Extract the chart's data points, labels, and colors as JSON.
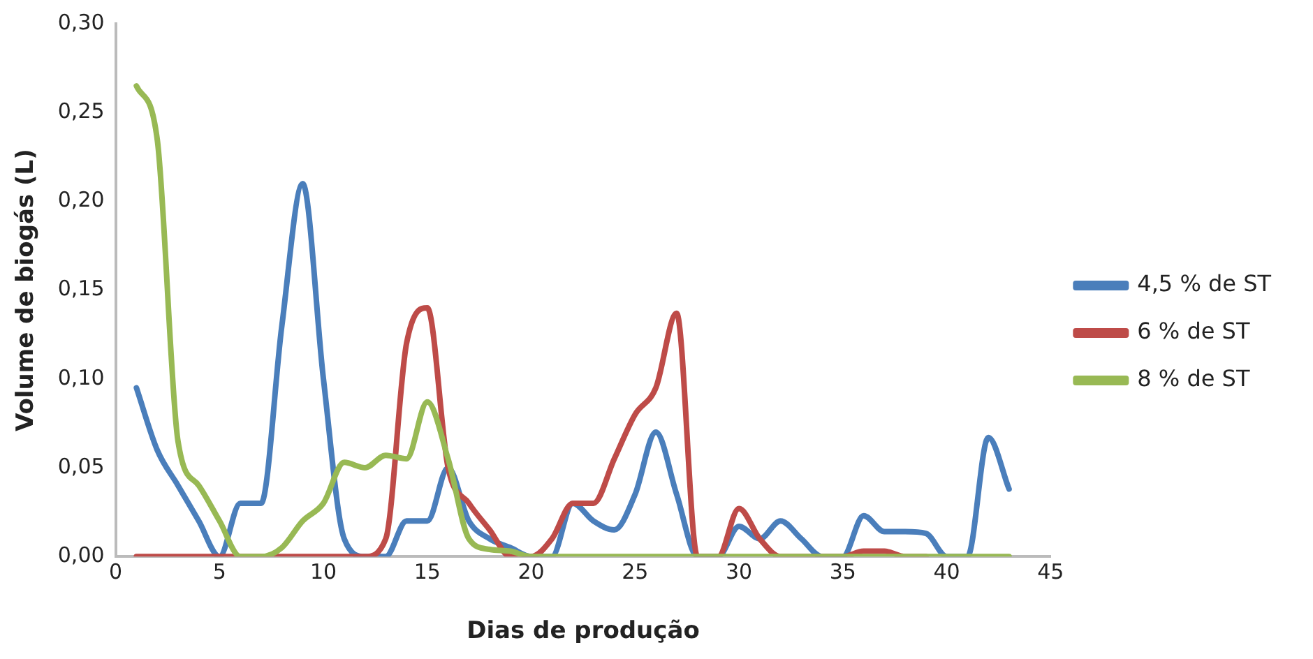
{
  "chart_data": {
    "type": "line",
    "xlabel": "Dias de produção",
    "ylabel": "Volume de biogás (L)",
    "x": [
      1,
      2,
      3,
      4,
      5,
      6,
      7,
      8,
      9,
      10,
      11,
      12,
      13,
      14,
      15,
      16,
      17,
      18,
      19,
      20,
      21,
      22,
      23,
      24,
      25,
      26,
      27,
      28,
      29,
      30,
      31,
      32,
      33,
      34,
      35,
      36,
      37,
      38,
      39,
      40,
      41,
      42,
      43
    ],
    "series": [
      {
        "name": "4,5 % de ST",
        "color": "#4a7ebb",
        "values": [
          0.095,
          0.06,
          0.04,
          0.02,
          0,
          0.03,
          0.03,
          0.13,
          0.21,
          0.1,
          0.01,
          0,
          0,
          0.02,
          0.02,
          0.05,
          0.02,
          0.01,
          0.005,
          0,
          0,
          0.03,
          0.02,
          0.015,
          0.035,
          0.07,
          0.035,
          0,
          0,
          0.017,
          0.01,
          0.02,
          0.01,
          0,
          0,
          0.023,
          0.014,
          0.014,
          0.013,
          0,
          0,
          0.067,
          0.038
        ]
      },
      {
        "name": "6 % de ST",
        "color": "#be4b48",
        "values": [
          0,
          0,
          0,
          0,
          0,
          0,
          0,
          0,
          0,
          0,
          0,
          0,
          0.01,
          0.12,
          0.14,
          0.05,
          0.03,
          0.015,
          0,
          0,
          0.01,
          0.03,
          0.03,
          0.055,
          0.08,
          0.095,
          0.137,
          0,
          0,
          0.027,
          0.01,
          0,
          0,
          0,
          0,
          0.003,
          0.003,
          0,
          0,
          null,
          null,
          null,
          null
        ]
      },
      {
        "name": "8 % de ST",
        "color": "#98b954",
        "values": [
          0.265,
          0.235,
          0.065,
          0.04,
          0.02,
          0,
          0,
          0.005,
          0.02,
          0.03,
          0.053,
          0.05,
          0.057,
          0.055,
          0.087,
          0.055,
          0.01,
          0.004,
          0.003,
          0,
          0,
          0,
          0,
          0,
          0,
          0,
          0,
          0,
          0,
          0,
          0,
          0,
          0,
          0,
          0,
          0,
          0,
          0,
          0,
          0,
          0,
          0,
          0
        ]
      }
    ],
    "xlim": [
      0,
      45
    ],
    "xticks": [
      0,
      5,
      10,
      15,
      20,
      25,
      30,
      35,
      40,
      45
    ],
    "ylim": [
      0,
      0.3
    ],
    "yticks": [
      {
        "value": 0,
        "label": "0,00"
      },
      {
        "value": 0.05,
        "label": "0,05"
      },
      {
        "value": 0.1,
        "label": "0,10"
      },
      {
        "value": 0.15,
        "label": "0,15"
      },
      {
        "value": 0.2,
        "label": "0,20"
      },
      {
        "value": 0.25,
        "label": "0,25"
      },
      {
        "value": 0.3,
        "label": "0,30"
      }
    ],
    "grid": false,
    "legend": "right",
    "marker": "none",
    "line_style": "solid"
  }
}
